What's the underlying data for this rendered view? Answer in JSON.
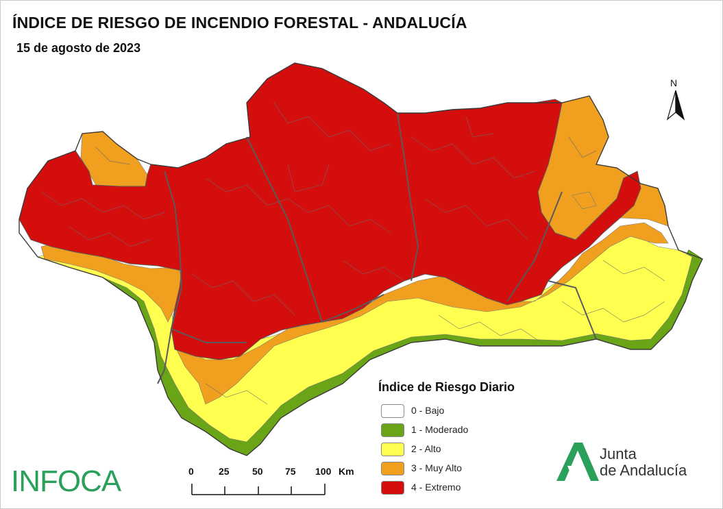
{
  "title": "ÍNDICE DE RIESGO DE INCENDIO FORESTAL - ANDALUCÍA",
  "subtitle": "15 de agosto de 2023",
  "north_letter": "N",
  "legend": {
    "title": "Índice de Riesgo Diario",
    "items": [
      {
        "label": "0 - Bajo",
        "color": "#ffffff"
      },
      {
        "label": "1 - Moderado",
        "color": "#6aa517"
      },
      {
        "label": "2 - Alto",
        "color": "#ffff50"
      },
      {
        "label": "3 - Muy Alto",
        "color": "#f0a01e"
      },
      {
        "label": "4 - Extremo",
        "color": "#d40d0d"
      }
    ]
  },
  "scale": {
    "ticks": [
      "0",
      "25",
      "50",
      "75",
      "100"
    ],
    "unit": "Km"
  },
  "brand_left": "INFOCA",
  "brand_right": {
    "line1": "Junta",
    "line2": "de Andalucía",
    "color": "#2aa05a"
  },
  "colors": {
    "moderado": "#6aa517",
    "alto": "#ffff50",
    "muy_alto": "#f0a01e",
    "extremo": "#d40d0d",
    "border": "#5a5a5a"
  }
}
